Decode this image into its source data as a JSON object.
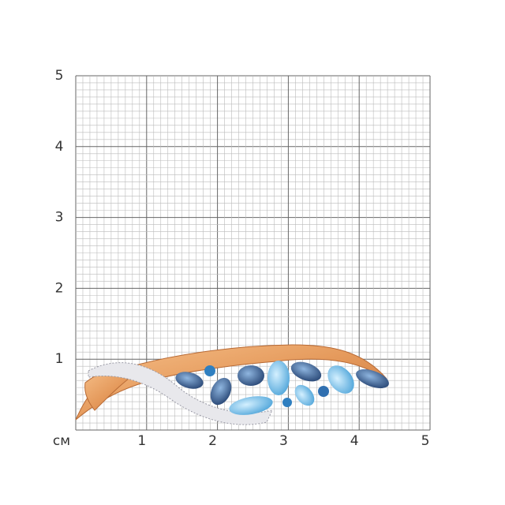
{
  "y_axis_labels": [
    "5",
    "4",
    "3",
    "2",
    "1"
  ],
  "x_axis_labels": [
    "см",
    "1",
    "2",
    "3",
    "4",
    "5"
  ]
}
